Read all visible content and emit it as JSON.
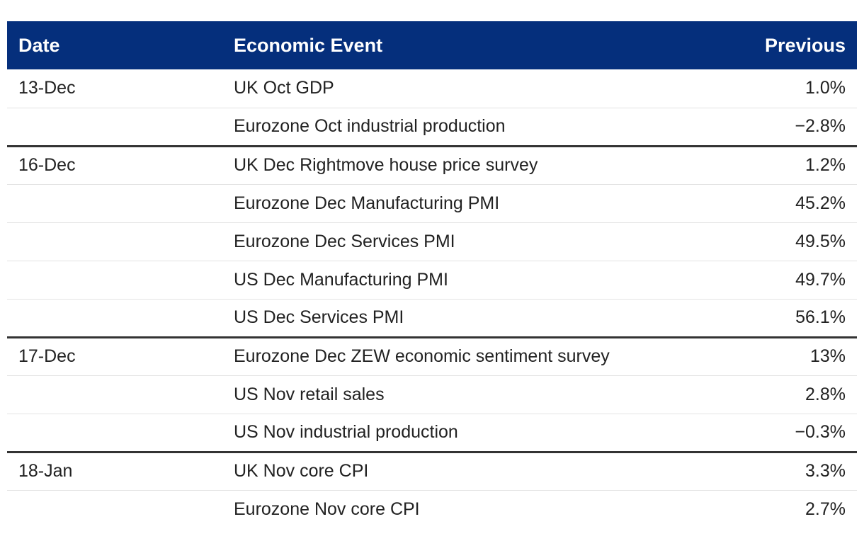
{
  "chart_data": {
    "type": "table",
    "columns": [
      "Date",
      "Economic Event",
      "Previous"
    ],
    "groups": [
      {
        "date": "13-Dec",
        "rows": [
          {
            "event": "UK Oct GDP",
            "previous": "1.0%"
          },
          {
            "event": "Eurozone Oct industrial production",
            "previous": "−2.8%"
          }
        ]
      },
      {
        "date": "16-Dec",
        "rows": [
          {
            "event": "UK Dec Rightmove house price survey",
            "previous": "1.2%"
          },
          {
            "event": "Eurozone Dec Manufacturing PMI",
            "previous": "45.2%"
          },
          {
            "event": "Eurozone Dec Services PMI",
            "previous": "49.5%"
          },
          {
            "event": "US Dec Manufacturing PMI",
            "previous": "49.7%"
          },
          {
            "event": "US Dec Services PMI",
            "previous": "56.1%"
          }
        ]
      },
      {
        "date": "17-Dec",
        "rows": [
          {
            "event": "Eurozone Dec ZEW economic sentiment survey",
            "previous": "13%"
          },
          {
            "event": "US Nov retail sales",
            "previous": "2.8%"
          },
          {
            "event": "US Nov industrial production",
            "previous": "−0.3%"
          }
        ]
      },
      {
        "date": "18-Jan",
        "rows": [
          {
            "event": "UK Nov core CPI",
            "previous": "3.3%"
          },
          {
            "event": "Eurozone Nov core CPI",
            "previous": "2.7%"
          }
        ]
      }
    ],
    "colors": {
      "header_bg": "#052f7c",
      "header_text": "#ffffff",
      "group_divider": "#333333",
      "row_divider": "#e3e3e3"
    }
  }
}
